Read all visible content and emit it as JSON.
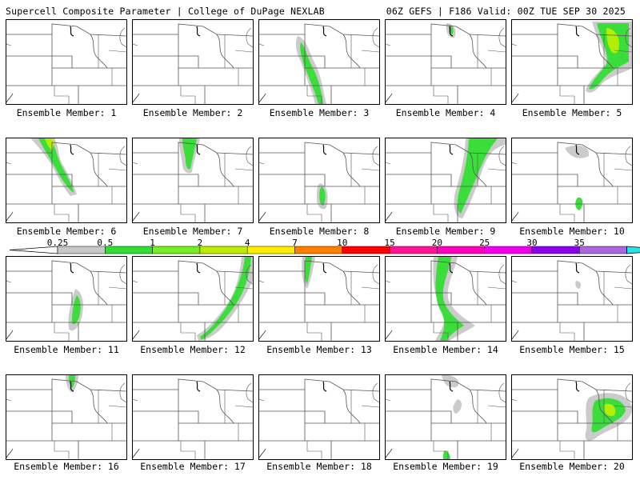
{
  "header": {
    "left": "Supercell Composite Parameter | College of DuPage NEXLAB",
    "right": "06Z GEFS | F186 Valid: 00Z TUE SEP 30 2025"
  },
  "legend": {
    "labels": [
      "0.25",
      "0.5",
      "1",
      "2",
      "4",
      "7",
      "10",
      "15",
      "20",
      "25",
      "30",
      "35"
    ],
    "colors": [
      "#c8c8c8",
      "#33dd33",
      "#77ee22",
      "#bbee00",
      "#ffee00",
      "#ff7f00",
      "#ff0000",
      "#ff1493",
      "#ff00bb",
      "#ee00ee",
      "#8800ee",
      "#aa66dd",
      "#22e5e5"
    ]
  },
  "members": [
    {
      "caption": "Ensemble Member: 1"
    },
    {
      "caption": "Ensemble Member: 2"
    },
    {
      "caption": "Ensemble Member: 3"
    },
    {
      "caption": "Ensemble Member: 4"
    },
    {
      "caption": "Ensemble Member: 5"
    },
    {
      "caption": "Ensemble Member: 6"
    },
    {
      "caption": "Ensemble Member: 7"
    },
    {
      "caption": "Ensemble Member: 8"
    },
    {
      "caption": "Ensemble Member: 9"
    },
    {
      "caption": "Ensemble Member: 10"
    },
    {
      "caption": "Ensemble Member: 11"
    },
    {
      "caption": "Ensemble Member: 12"
    },
    {
      "caption": "Ensemble Member: 13"
    },
    {
      "caption": "Ensemble Member: 14"
    },
    {
      "caption": "Ensemble Member: 15"
    },
    {
      "caption": "Ensemble Member: 16"
    },
    {
      "caption": "Ensemble Member: 17"
    },
    {
      "caption": "Ensemble Member: 18"
    },
    {
      "caption": "Ensemble Member: 19"
    },
    {
      "caption": "Ensemble Member: 20"
    }
  ]
}
